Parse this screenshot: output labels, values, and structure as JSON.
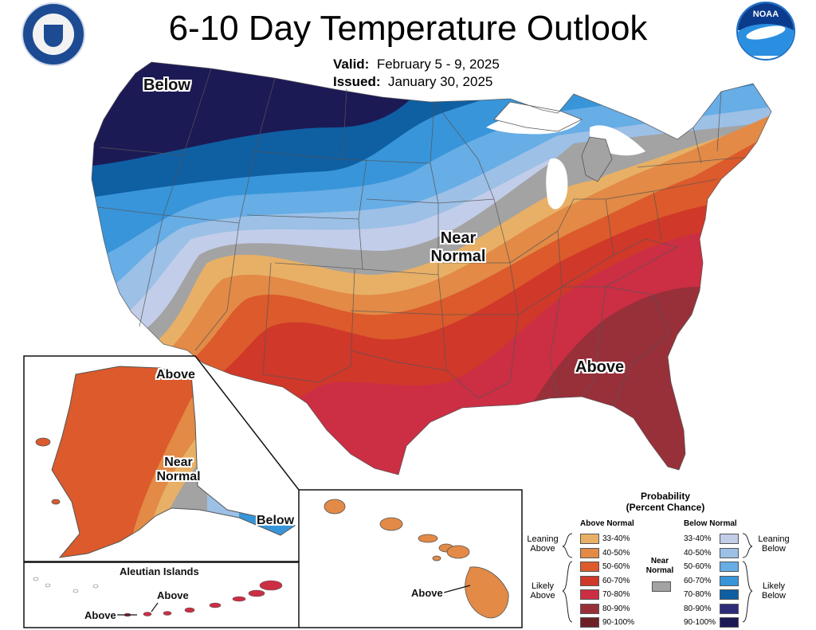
{
  "header": {
    "title": "6-10 Day Temperature Outlook",
    "valid_label": "Valid:",
    "valid_value": "February 5 - 9, 2025",
    "issued_label": "Issued:",
    "issued_value": "January 30, 2025"
  },
  "logos": {
    "commerce_seal": "department-of-commerce-seal",
    "noaa_seal": "noaa-seal",
    "noaa_text": "NOAA"
  },
  "map_labels": {
    "conus_below": "Below",
    "conus_near_line1": "Near",
    "conus_near_line2": "Normal",
    "conus_above": "Above",
    "alaska_above": "Above",
    "alaska_near_line1": "Near",
    "alaska_near_line2": "Normal",
    "alaska_below": "Below",
    "aleutian_title": "Aleutian Islands",
    "aleutian_above_1": "Above",
    "aleutian_above_2": "Above",
    "hawaii_above": "Above"
  },
  "legend": {
    "title_line1": "Probability",
    "title_line2": "(Percent Chance)",
    "above_header": "Above Normal",
    "below_header": "Below Normal",
    "near_normal_line1": "Near",
    "near_normal_line2": "Normal",
    "leaning_above_line1": "Leaning",
    "leaning_above_line2": "Above",
    "likely_above_line1": "Likely",
    "likely_above_line2": "Above",
    "leaning_below_line1": "Leaning",
    "leaning_below_line2": "Below",
    "likely_below_line1": "Likely",
    "likely_below_line2": "Below",
    "above_bins": [
      {
        "range": "33-40%",
        "color": "#e8b066"
      },
      {
        "range": "40-50%",
        "color": "#e28a46"
      },
      {
        "range": "50-60%",
        "color": "#dc5a2b"
      },
      {
        "range": "60-70%",
        "color": "#d0382a"
      },
      {
        "range": "70-80%",
        "color": "#cc2e44"
      },
      {
        "range": "80-90%",
        "color": "#98303a"
      },
      {
        "range": "90-100%",
        "color": "#6e1f26"
      }
    ],
    "below_bins": [
      {
        "range": "33-40%",
        "color": "#c2cde9"
      },
      {
        "range": "40-50%",
        "color": "#9cc0e6"
      },
      {
        "range": "50-60%",
        "color": "#67ade6"
      },
      {
        "range": "60-70%",
        "color": "#3895d9"
      },
      {
        "range": "70-80%",
        "color": "#0f5fa3"
      },
      {
        "range": "80-90%",
        "color": "#2d2c79"
      },
      {
        "range": "90-100%",
        "color": "#1c1a55"
      }
    ],
    "near_normal_color": "#a3a3a3"
  }
}
